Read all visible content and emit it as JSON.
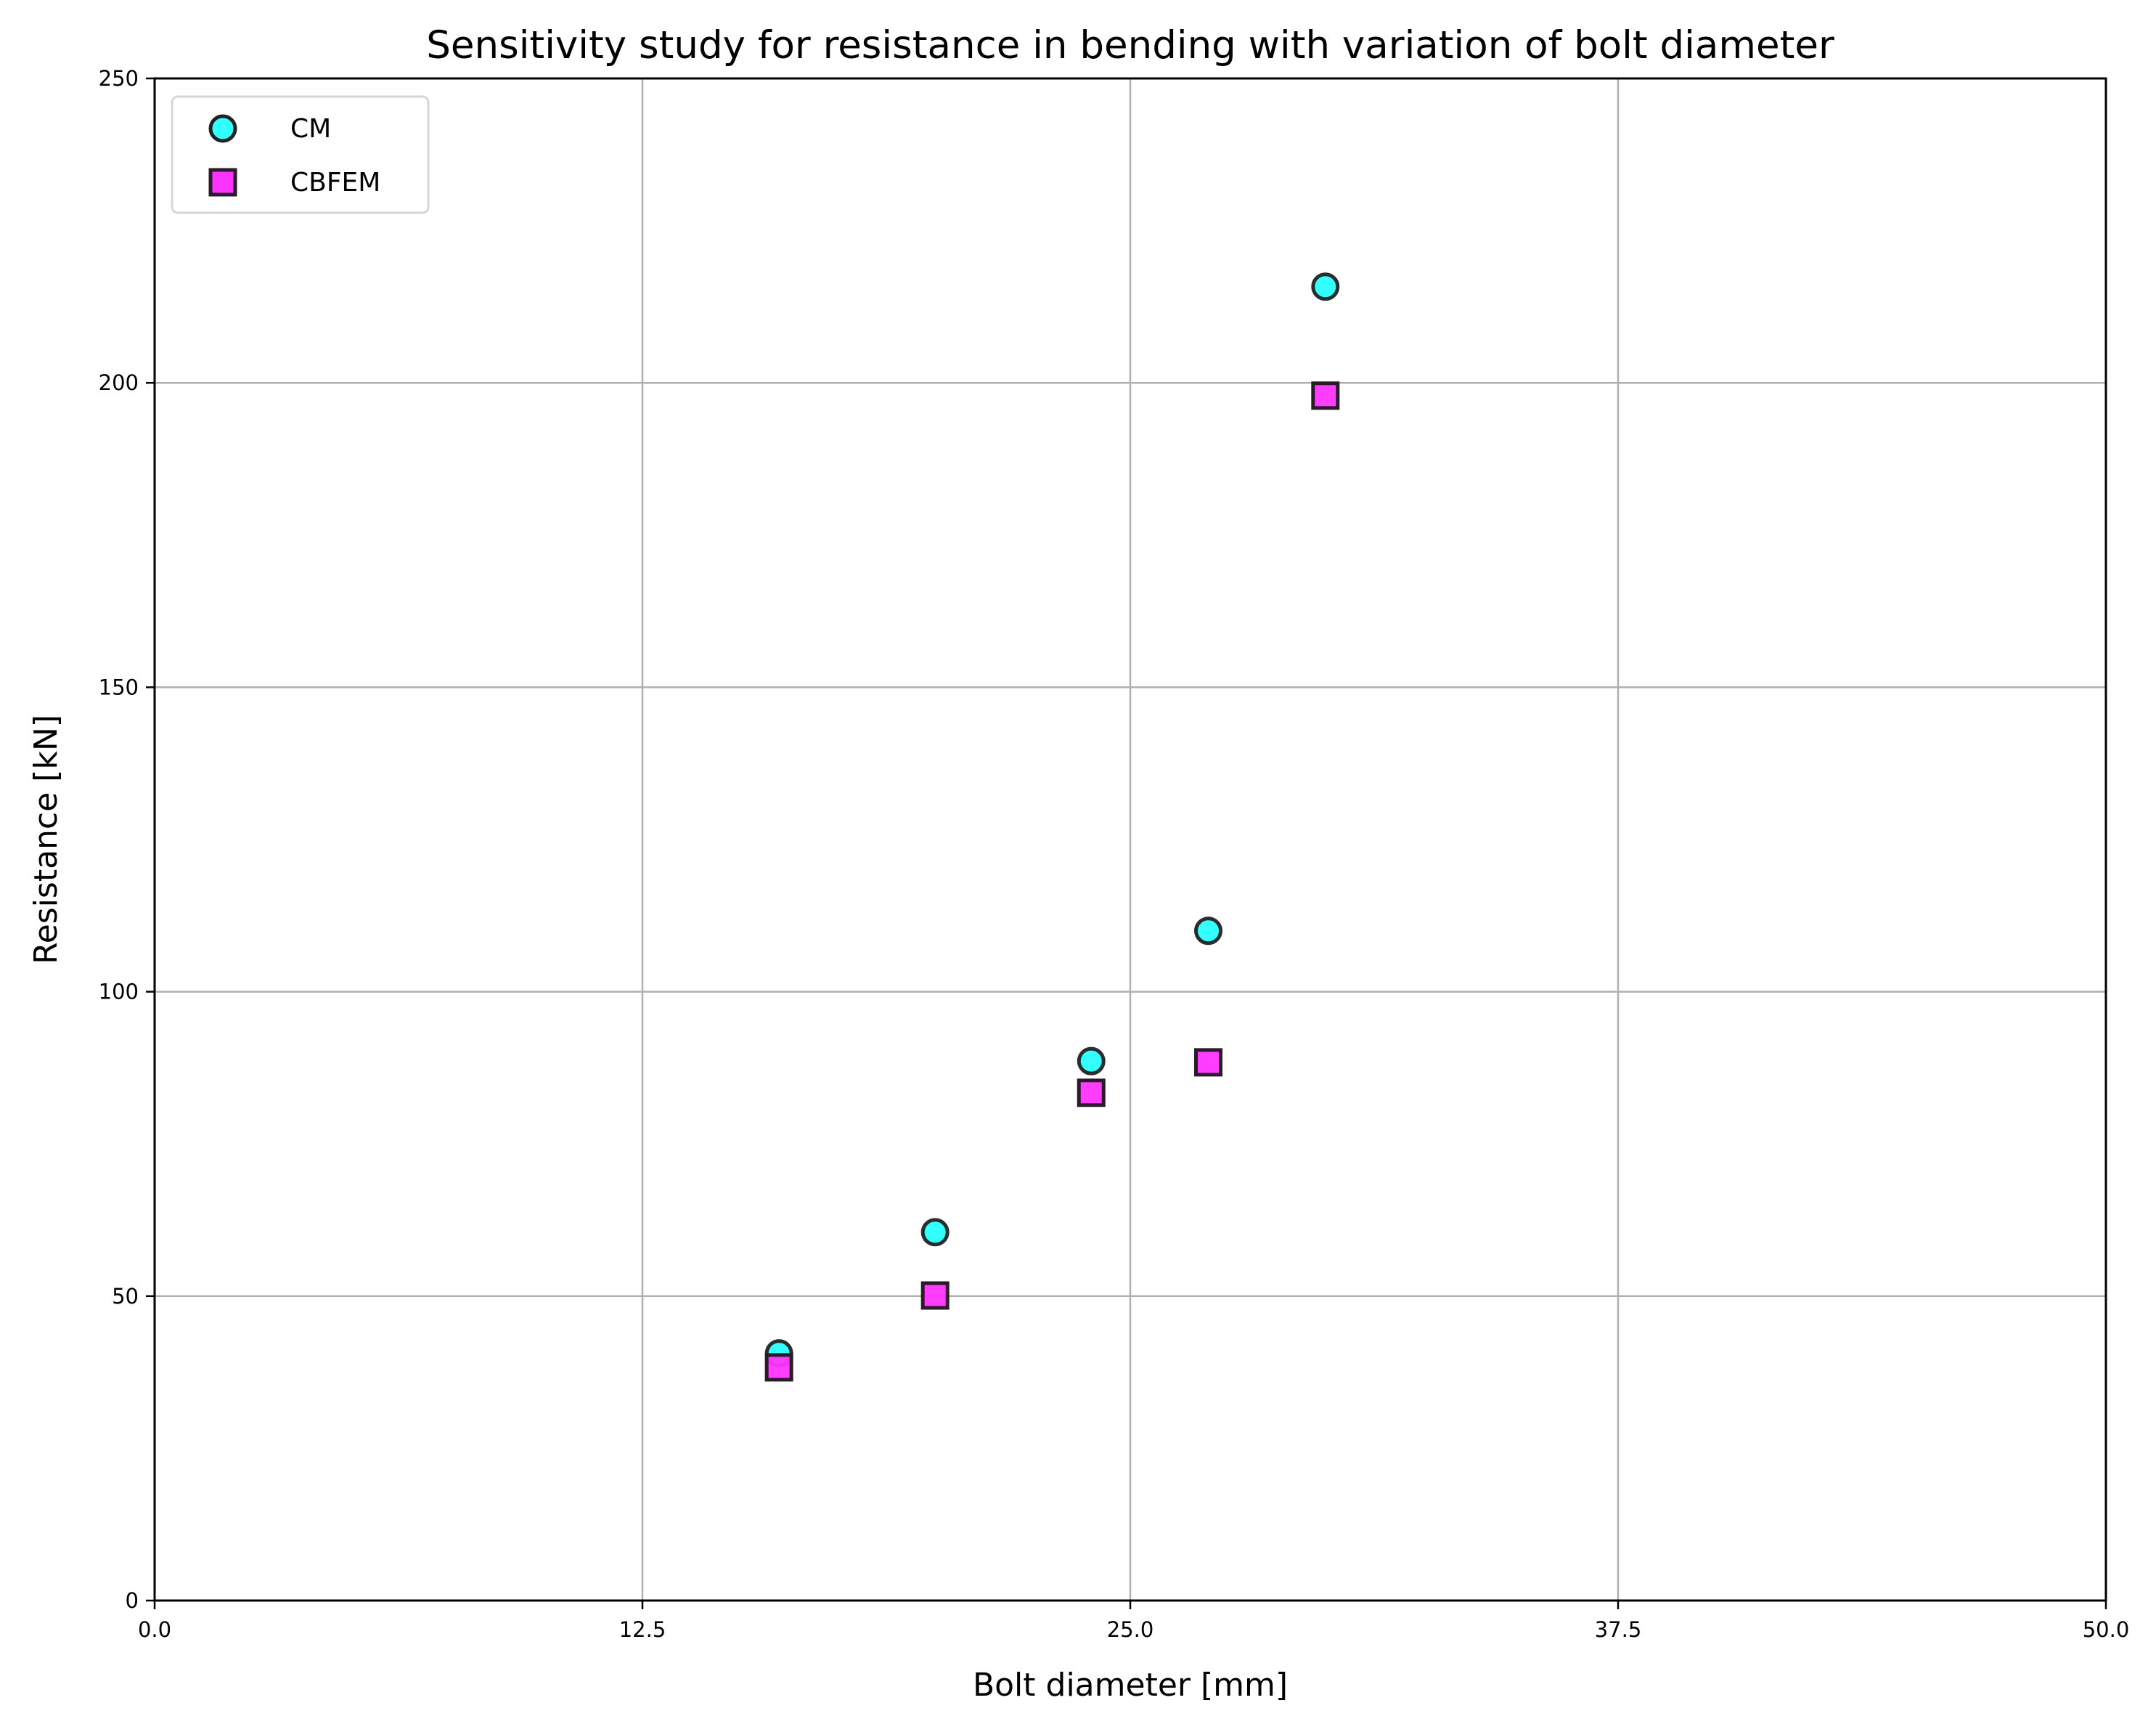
{
  "chart_data": {
    "type": "scatter",
    "title": "Sensitivity study for resistance in bending with variation of bolt diameter",
    "xlabel": "Bolt diameter [mm]",
    "ylabel": "Resistance [kN]",
    "xlim": [
      0,
      50
    ],
    "ylim": [
      0,
      250
    ],
    "xticks": [
      "0.0",
      "12.5",
      "25.0",
      "37.5",
      "50.0"
    ],
    "xtick_values": [
      0,
      12.5,
      25,
      37.5,
      50
    ],
    "yticks": [
      "0",
      "50",
      "100",
      "150",
      "200",
      "250"
    ],
    "ytick_values": [
      0,
      50,
      100,
      150,
      200,
      250
    ],
    "grid": true,
    "legend_position": "top-left",
    "series": [
      {
        "name": "CM",
        "marker": "circle",
        "color": "#33ffff",
        "edge": "#222222",
        "x": [
          16,
          20,
          24,
          27,
          30
        ],
        "y": [
          40.6,
          60.5,
          88.6,
          110.0,
          215.8
        ]
      },
      {
        "name": "CBFEM",
        "marker": "square",
        "color": "#ff33ff",
        "edge": "#2a1a2a",
        "x": [
          16,
          20,
          24,
          27,
          30
        ],
        "y": [
          38.3,
          50.1,
          83.4,
          88.4,
          197.9
        ]
      }
    ]
  }
}
